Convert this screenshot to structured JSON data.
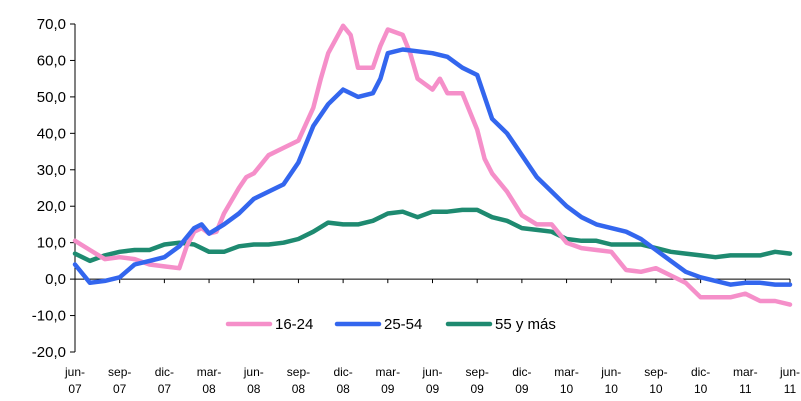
{
  "chart_data": {
    "type": "line",
    "title": "",
    "xlabel": "",
    "ylabel": "",
    "ylim": [
      -20,
      70
    ],
    "yticks": [
      "70,0",
      "60,0",
      "50,0",
      "40,0",
      "30,0",
      "20,0",
      "10,0",
      "0,0",
      "-10,0",
      "-20,0"
    ],
    "ytick_values": [
      70,
      60,
      50,
      40,
      30,
      20,
      10,
      0,
      -10,
      -20
    ],
    "grid": false,
    "legend_position": "bottom-inside",
    "x_start": "jun-07",
    "x_end": "jun-11",
    "x_tick_labels": [
      [
        "jun-",
        "07"
      ],
      [
        "sep-",
        "07"
      ],
      [
        "dic-",
        "07"
      ],
      [
        "mar-",
        "08"
      ],
      [
        "jun-",
        "08"
      ],
      [
        "sep-",
        "08"
      ],
      [
        "dic-",
        "08"
      ],
      [
        "mar-",
        "09"
      ],
      [
        "jun-",
        "09"
      ],
      [
        "sep-",
        "09"
      ],
      [
        "dic-",
        "09"
      ],
      [
        "mar-",
        "10"
      ],
      [
        "jun-",
        "10"
      ],
      [
        "sep-",
        "10"
      ],
      [
        "dic-",
        "10"
      ],
      [
        "mar-",
        "11"
      ],
      [
        "jun-",
        "11"
      ]
    ],
    "series": [
      {
        "name": "16-24",
        "color": "#f58fc9",
        "points": [
          [
            "jun-07",
            10.5
          ],
          [
            "jul-07",
            8
          ],
          [
            "ago-07",
            5.5
          ],
          [
            "sep-07",
            6
          ],
          [
            "oct-07",
            5.5
          ],
          [
            "nov-07",
            4
          ],
          [
            "dic-07",
            3.5
          ],
          [
            "ene-08",
            3
          ],
          [
            "ene-08",
            9
          ],
          [
            "feb-08",
            13
          ],
          [
            "feb-08",
            14
          ],
          [
            "mar-08",
            12.5
          ],
          [
            "mar-08",
            13
          ],
          [
            "abr-08",
            18
          ],
          [
            "may-08",
            25
          ],
          [
            "may-08",
            28
          ],
          [
            "jun-08",
            29
          ],
          [
            "jul-08",
            34
          ],
          [
            "ago-08",
            36
          ],
          [
            "sep-08",
            38
          ],
          [
            "oct-08",
            47
          ],
          [
            "oct-08",
            55
          ],
          [
            "nov-08",
            62
          ],
          [
            "dic-08",
            69.5
          ],
          [
            "dic-08",
            67
          ],
          [
            "ene-09",
            58
          ],
          [
            "feb-09",
            58
          ],
          [
            "feb-09",
            64
          ],
          [
            "mar-09",
            68.5
          ],
          [
            "abr-09",
            67
          ],
          [
            "abr-09",
            62
          ],
          [
            "may-09",
            55
          ],
          [
            "jun-09",
            52
          ],
          [
            "jun-09",
            55
          ],
          [
            "jul-09",
            51
          ],
          [
            "ago-09",
            51
          ],
          [
            "sep-09",
            41
          ],
          [
            "sep-09",
            33
          ],
          [
            "oct-09",
            29
          ],
          [
            "nov-09",
            24
          ],
          [
            "dic-09",
            17.5
          ],
          [
            "ene-10",
            15
          ],
          [
            "feb-10",
            15
          ],
          [
            "mar-10",
            10
          ],
          [
            "abr-10",
            8.5
          ],
          [
            "may-10",
            8
          ],
          [
            "jun-10",
            7.5
          ],
          [
            "jul-10",
            2.5
          ],
          [
            "ago-10",
            2
          ],
          [
            "sep-10",
            3
          ],
          [
            "oct-10",
            1
          ],
          [
            "nov-10",
            -1
          ],
          [
            "dic-10",
            -5
          ],
          [
            "ene-11",
            -5
          ],
          [
            "feb-11",
            -5
          ],
          [
            "mar-11",
            -4
          ],
          [
            "abr-11",
            -6
          ],
          [
            "may-11",
            -6
          ],
          [
            "jun-11",
            -7
          ]
        ]
      },
      {
        "name": "25-54",
        "color": "#3366ee",
        "points": [
          [
            "jun-07",
            4
          ],
          [
            "jul-07",
            -1
          ],
          [
            "ago-07",
            -0.5
          ],
          [
            "sep-07",
            0.5
          ],
          [
            "oct-07",
            4
          ],
          [
            "nov-07",
            5
          ],
          [
            "dic-07",
            6
          ],
          [
            "ene-08",
            9
          ],
          [
            "feb-08",
            14
          ],
          [
            "feb-08",
            15
          ],
          [
            "mar-08",
            12.5
          ],
          [
            "abr-08",
            15
          ],
          [
            "may-08",
            18
          ],
          [
            "jun-08",
            22
          ],
          [
            "jul-08",
            24
          ],
          [
            "ago-08",
            26
          ],
          [
            "sep-08",
            32
          ],
          [
            "oct-08",
            42
          ],
          [
            "nov-08",
            48
          ],
          [
            "dic-08",
            52
          ],
          [
            "ene-09",
            50
          ],
          [
            "feb-09",
            51
          ],
          [
            "feb-09",
            55
          ],
          [
            "mar-09",
            62
          ],
          [
            "abr-09",
            63
          ],
          [
            "may-09",
            62.5
          ],
          [
            "jun-09",
            62
          ],
          [
            "jul-09",
            61
          ],
          [
            "ago-09",
            58
          ],
          [
            "sep-09",
            56
          ],
          [
            "oct-09",
            44
          ],
          [
            "nov-09",
            40
          ],
          [
            "dic-09",
            34
          ],
          [
            "ene-10",
            28
          ],
          [
            "feb-10",
            24
          ],
          [
            "mar-10",
            20
          ],
          [
            "abr-10",
            17
          ],
          [
            "may-10",
            15
          ],
          [
            "jun-10",
            14
          ],
          [
            "jul-10",
            13
          ],
          [
            "ago-10",
            11
          ],
          [
            "sep-10",
            8
          ],
          [
            "oct-10",
            5
          ],
          [
            "nov-10",
            2
          ],
          [
            "dic-10",
            0.5
          ],
          [
            "ene-11",
            -0.5
          ],
          [
            "feb-11",
            -1.5
          ],
          [
            "mar-11",
            -1
          ],
          [
            "abr-11",
            -1
          ],
          [
            "may-11",
            -1.5
          ],
          [
            "jun-11",
            -1.5
          ]
        ]
      },
      {
        "name": "55 y más",
        "color": "#1e8a70",
        "points": [
          [
            "jun-07",
            7
          ],
          [
            "jul-07",
            5
          ],
          [
            "ago-07",
            6.5
          ],
          [
            "sep-07",
            7.5
          ],
          [
            "oct-07",
            8
          ],
          [
            "nov-07",
            8
          ],
          [
            "dic-07",
            9.5
          ],
          [
            "ene-08",
            10
          ],
          [
            "feb-08",
            9.5
          ],
          [
            "mar-08",
            7.5
          ],
          [
            "abr-08",
            7.5
          ],
          [
            "may-08",
            9
          ],
          [
            "jun-08",
            9.5
          ],
          [
            "jul-08",
            9.5
          ],
          [
            "ago-08",
            10
          ],
          [
            "sep-08",
            11
          ],
          [
            "oct-08",
            13
          ],
          [
            "nov-08",
            15.5
          ],
          [
            "dic-08",
            15
          ],
          [
            "ene-09",
            15
          ],
          [
            "feb-09",
            16
          ],
          [
            "mar-09",
            18
          ],
          [
            "abr-09",
            18.5
          ],
          [
            "may-09",
            17
          ],
          [
            "jun-09",
            18.5
          ],
          [
            "jul-09",
            18.5
          ],
          [
            "ago-09",
            19
          ],
          [
            "sep-09",
            19
          ],
          [
            "oct-09",
            17
          ],
          [
            "nov-09",
            16
          ],
          [
            "dic-09",
            14
          ],
          [
            "ene-10",
            13.5
          ],
          [
            "feb-10",
            13
          ],
          [
            "mar-10",
            11
          ],
          [
            "abr-10",
            10.5
          ],
          [
            "may-10",
            10.5
          ],
          [
            "jun-10",
            9.5
          ],
          [
            "jul-10",
            9.5
          ],
          [
            "ago-10",
            9.5
          ],
          [
            "sep-10",
            8.5
          ],
          [
            "oct-10",
            7.5
          ],
          [
            "nov-10",
            7
          ],
          [
            "dic-10",
            6.5
          ],
          [
            "ene-11",
            6
          ],
          [
            "feb-11",
            6.5
          ],
          [
            "mar-11",
            6.5
          ],
          [
            "abr-11",
            6.5
          ],
          [
            "may-11",
            7.5
          ],
          [
            "jun-11",
            7
          ]
        ]
      }
    ]
  }
}
